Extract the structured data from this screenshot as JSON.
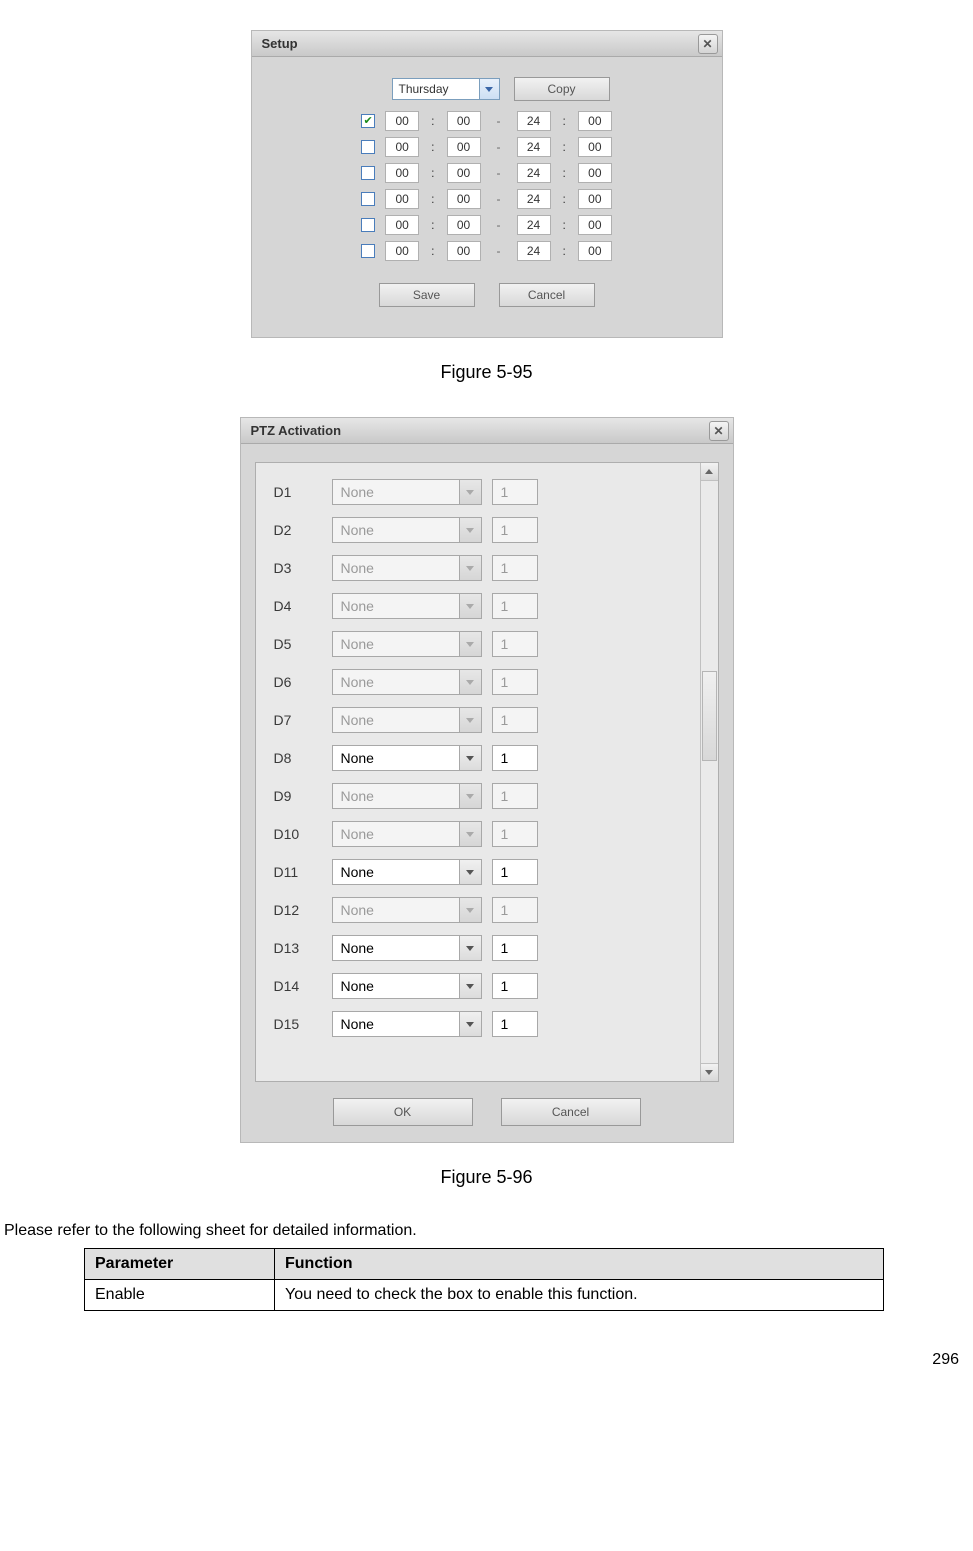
{
  "colors": {
    "dialog_bg": "#d6d6d6",
    "dialog_border": "#b8b8b8",
    "titlebar_grad_top": "#e6e6e6",
    "titlebar_grad_bot": "#c9c9c9",
    "input_border_blue": "#7b9ebd",
    "btn_grad_top": "#f2f2f2",
    "btn_grad_bot": "#d8d8d8",
    "check_green": "#1a8a1a",
    "table_header_bg": "#e0e0e0"
  },
  "setup_dialog": {
    "title": "Setup",
    "day_selected": "Thursday",
    "copy_label": "Copy",
    "save_label": "Save",
    "cancel_label": "Cancel",
    "rows": [
      {
        "checked": true,
        "h1": "00",
        "m1": "00",
        "h2": "24",
        "m2": "00"
      },
      {
        "checked": false,
        "h1": "00",
        "m1": "00",
        "h2": "24",
        "m2": "00"
      },
      {
        "checked": false,
        "h1": "00",
        "m1": "00",
        "h2": "24",
        "m2": "00"
      },
      {
        "checked": false,
        "h1": "00",
        "m1": "00",
        "h2": "24",
        "m2": "00"
      },
      {
        "checked": false,
        "h1": "00",
        "m1": "00",
        "h2": "24",
        "m2": "00"
      },
      {
        "checked": false,
        "h1": "00",
        "m1": "00",
        "h2": "24",
        "m2": "00"
      }
    ]
  },
  "figure_595_caption": "Figure 5-95",
  "ptz_dialog": {
    "title": "PTZ Activation",
    "ok_label": "OK",
    "cancel_label": "Cancel",
    "rows": [
      {
        "label": "D1",
        "value": "None",
        "num": "1",
        "enabled": false
      },
      {
        "label": "D2",
        "value": "None",
        "num": "1",
        "enabled": false
      },
      {
        "label": "D3",
        "value": "None",
        "num": "1",
        "enabled": false
      },
      {
        "label": "D4",
        "value": "None",
        "num": "1",
        "enabled": false
      },
      {
        "label": "D5",
        "value": "None",
        "num": "1",
        "enabled": false
      },
      {
        "label": "D6",
        "value": "None",
        "num": "1",
        "enabled": false
      },
      {
        "label": "D7",
        "value": "None",
        "num": "1",
        "enabled": false
      },
      {
        "label": "D8",
        "value": "None",
        "num": "1",
        "enabled": true
      },
      {
        "label": "D9",
        "value": "None",
        "num": "1",
        "enabled": false
      },
      {
        "label": "D10",
        "value": "None",
        "num": "1",
        "enabled": false
      },
      {
        "label": "D11",
        "value": "None",
        "num": "1",
        "enabled": true
      },
      {
        "label": "D12",
        "value": "None",
        "num": "1",
        "enabled": false
      },
      {
        "label": "D13",
        "value": "None",
        "num": "1",
        "enabled": true
      },
      {
        "label": "D14",
        "value": "None",
        "num": "1",
        "enabled": true
      },
      {
        "label": "D15",
        "value": "None",
        "num": "1",
        "enabled": true
      }
    ]
  },
  "figure_596_caption": "Figure 5-96",
  "body_text": "Please refer to the following sheet for detailed information.",
  "table": {
    "headers": [
      "Parameter",
      "Function"
    ],
    "rows": [
      [
        "Enable",
        "You need to check the box to enable this function."
      ]
    ]
  },
  "page_number": "296"
}
